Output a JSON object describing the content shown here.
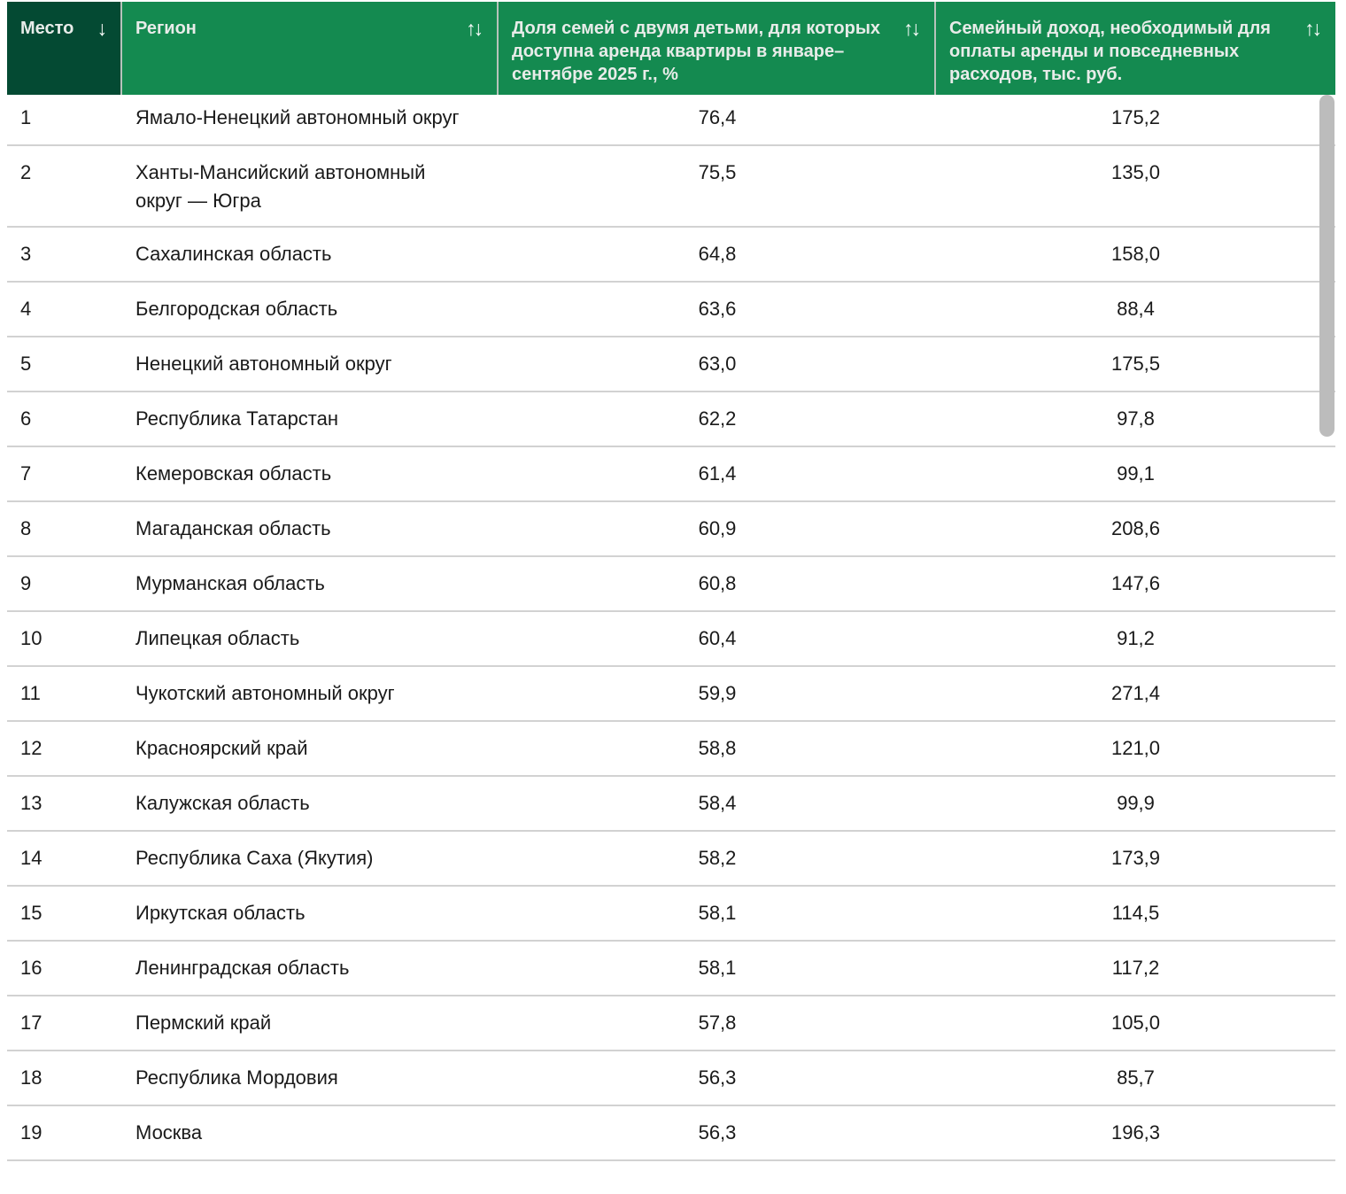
{
  "chart_data": {
    "type": "table",
    "columns": [
      {
        "label": "Место",
        "sort_icon": "↓"
      },
      {
        "label": "Регион",
        "sort_icon": "↑↓"
      },
      {
        "label": "Доля семей с двумя детьми, для которых доступна аренда квартиры в январе–сентябре 2025 г., %",
        "sort_icon": "↑↓"
      },
      {
        "label": "Семейный доход, необходимый для оплаты аренды и повседневных расходов, тыс. руб.",
        "sort_icon": "↑↓"
      }
    ],
    "rows": [
      {
        "rank": "1",
        "region": "Ямало-Ненецкий автономный округ",
        "share_pct": "76,4",
        "income_thousand_rub": "175,2"
      },
      {
        "rank": "2",
        "region": "Ханты-Мансийский автономный округ — Югра",
        "share_pct": "75,5",
        "income_thousand_rub": "135,0"
      },
      {
        "rank": "3",
        "region": "Сахалинская область",
        "share_pct": "64,8",
        "income_thousand_rub": "158,0"
      },
      {
        "rank": "4",
        "region": "Белгородская область",
        "share_pct": "63,6",
        "income_thousand_rub": "88,4"
      },
      {
        "rank": "5",
        "region": "Ненецкий автономный округ",
        "share_pct": "63,0",
        "income_thousand_rub": "175,5"
      },
      {
        "rank": "6",
        "region": "Республика Татарстан",
        "share_pct": "62,2",
        "income_thousand_rub": "97,8"
      },
      {
        "rank": "7",
        "region": "Кемеровская область",
        "share_pct": "61,4",
        "income_thousand_rub": "99,1"
      },
      {
        "rank": "8",
        "region": "Магаданская область",
        "share_pct": "60,9",
        "income_thousand_rub": "208,6"
      },
      {
        "rank": "9",
        "region": "Мурманская область",
        "share_pct": "60,8",
        "income_thousand_rub": "147,6"
      },
      {
        "rank": "10",
        "region": "Липецкая область",
        "share_pct": "60,4",
        "income_thousand_rub": "91,2"
      },
      {
        "rank": "11",
        "region": "Чукотский автономный округ",
        "share_pct": "59,9",
        "income_thousand_rub": "271,4"
      },
      {
        "rank": "12",
        "region": "Красноярский край",
        "share_pct": "58,8",
        "income_thousand_rub": "121,0"
      },
      {
        "rank": "13",
        "region": "Калужская область",
        "share_pct": "58,4",
        "income_thousand_rub": "99,9"
      },
      {
        "rank": "14",
        "region": "Республика Саха (Якутия)",
        "share_pct": "58,2",
        "income_thousand_rub": "173,9"
      },
      {
        "rank": "15",
        "region": "Иркутская область",
        "share_pct": "58,1",
        "income_thousand_rub": "114,5"
      },
      {
        "rank": "16",
        "region": "Ленинградская область",
        "share_pct": "58,1",
        "income_thousand_rub": "117,2"
      },
      {
        "rank": "17",
        "region": "Пермский край",
        "share_pct": "57,8",
        "income_thousand_rub": "105,0"
      },
      {
        "rank": "18",
        "region": "Республика Мордовия",
        "share_pct": "56,3",
        "income_thousand_rub": "85,7"
      },
      {
        "rank": "19",
        "region": "Москва",
        "share_pct": "56,3",
        "income_thousand_rub": "196,3"
      }
    ],
    "layout": {
      "sorted_column": "Место",
      "grid": "horizontal-row-dividers-only"
    }
  },
  "colors": {
    "header_bg": "#148a50",
    "header_sorted_bg": "#044a33",
    "header_text": "#e8ece9",
    "header_divider": "#b7c3bb",
    "row_divider": "#d2d2d2",
    "body_text": "#1a1a1a",
    "scrollbar_thumb": "#bcbcbc"
  }
}
